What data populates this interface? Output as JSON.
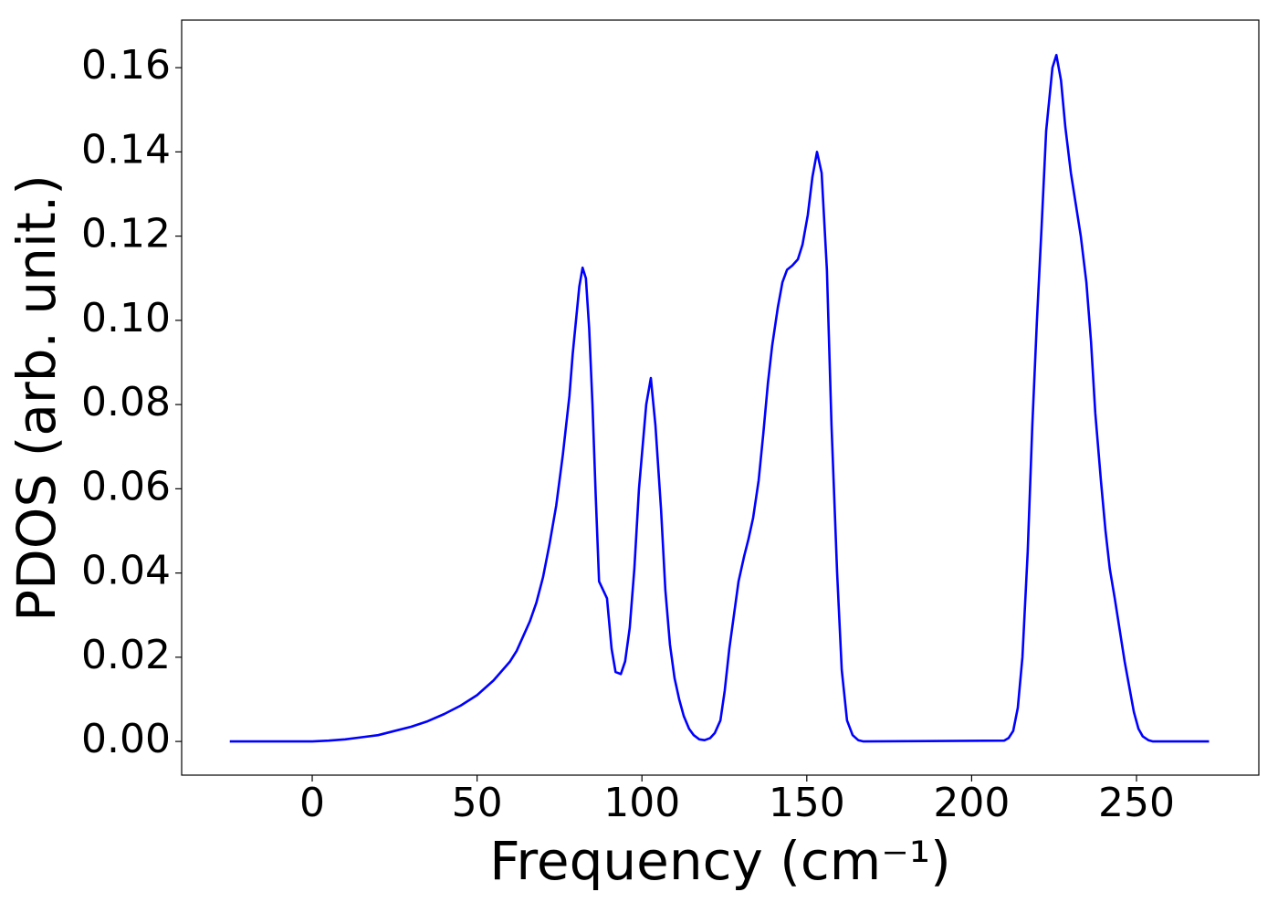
{
  "chart_data": {
    "type": "line",
    "xlabel": "Frequency (cm⁻¹)",
    "ylabel": "PDOS (arb. unit.)",
    "color": "#0000ff",
    "x": [
      -25,
      0,
      5,
      10,
      15,
      20,
      25,
      30,
      35,
      40,
      45,
      50,
      55,
      60,
      62,
      64,
      66,
      68,
      70,
      72,
      74,
      76,
      78,
      79,
      80,
      81,
      82,
      83,
      84,
      85,
      86,
      87,
      89.4,
      90.8,
      92,
      93.6,
      94.9,
      96.3,
      97.7,
      99.1,
      101.3,
      102.7,
      104.1,
      105.8,
      107.1,
      108.5,
      109.9,
      111.3,
      112.7,
      114.3,
      115.7,
      117.4,
      119,
      120.7,
      122.1,
      123.8,
      125.1,
      126.5,
      127.9,
      129.3,
      131,
      132.3,
      133.7,
      135.4,
      136.8,
      138.2,
      139.5,
      141.2,
      142.6,
      144,
      145.6,
      147.3,
      148.7,
      150.3,
      151.7,
      153.1,
      154.5,
      156.1,
      157.5,
      159.2,
      160.6,
      162.2,
      163.9,
      165.6,
      167.2,
      209.9,
      211.2,
      212.6,
      214,
      215.4,
      217,
      218.4,
      219.8,
      221.2,
      222.6,
      224.5,
      225.7,
      227.1,
      228.4,
      230.1,
      231.5,
      233.1,
      234.8,
      236.2,
      237.5,
      239.2,
      240.6,
      241.9,
      243.4,
      245,
      246.4,
      247.8,
      249.2,
      250.6,
      251.9,
      253.6,
      255,
      272
    ],
    "values": [
      0,
      0,
      0.0002,
      0.0005,
      0.001,
      0.0015,
      0.0025,
      0.0035,
      0.0048,
      0.0065,
      0.0085,
      0.011,
      0.0145,
      0.019,
      0.0215,
      0.025,
      0.0285,
      0.033,
      0.039,
      0.047,
      0.056,
      0.068,
      0.082,
      0.092,
      0.1,
      0.108,
      0.1125,
      0.11,
      0.098,
      0.08,
      0.058,
      0.038,
      0.034,
      0.022,
      0.0165,
      0.016,
      0.019,
      0.027,
      0.041,
      0.06,
      0.08,
      0.0863,
      0.075,
      0.055,
      0.036,
      0.023,
      0.015,
      0.01,
      0.006,
      0.003,
      0.0015,
      0.0005,
      0.0003,
      0.0008,
      0.002,
      0.005,
      0.012,
      0.022,
      0.03,
      0.038,
      0.044,
      0.048,
      0.053,
      0.062,
      0.073,
      0.085,
      0.094,
      0.103,
      0.109,
      0.112,
      0.113,
      0.1145,
      0.118,
      0.125,
      0.134,
      0.14,
      0.135,
      0.112,
      0.075,
      0.04,
      0.017,
      0.005,
      0.0015,
      0.0003,
      0,
      0.0002,
      0.0008,
      0.0025,
      0.008,
      0.02,
      0.045,
      0.075,
      0.1,
      0.122,
      0.145,
      0.16,
      0.163,
      0.157,
      0.146,
      0.135,
      0.128,
      0.12,
      0.109,
      0.095,
      0.078,
      0.062,
      0.05,
      0.041,
      0.034,
      0.026,
      0.019,
      0.013,
      0.007,
      0.003,
      0.0012,
      0.0003,
      0,
      0
    ],
    "xlim": [
      -39.6,
      287.1
    ],
    "ylim": [
      -0.008,
      0.1713
    ],
    "xticks": [
      0,
      50,
      100,
      150,
      200,
      250
    ],
    "yticks": [
      {
        "value": 0,
        "label": "0.00"
      },
      {
        "value": 0.02,
        "label": "0.02"
      },
      {
        "value": 0.04,
        "label": "0.04"
      },
      {
        "value": 0.06,
        "label": "0.06"
      },
      {
        "value": 0.08,
        "label": "0.08"
      },
      {
        "value": 0.1,
        "label": "0.10"
      },
      {
        "value": 0.12,
        "label": "0.12"
      },
      {
        "value": 0.14,
        "label": "0.14"
      },
      {
        "value": 0.16,
        "label": "0.16"
      }
    ],
    "grid": false
  }
}
